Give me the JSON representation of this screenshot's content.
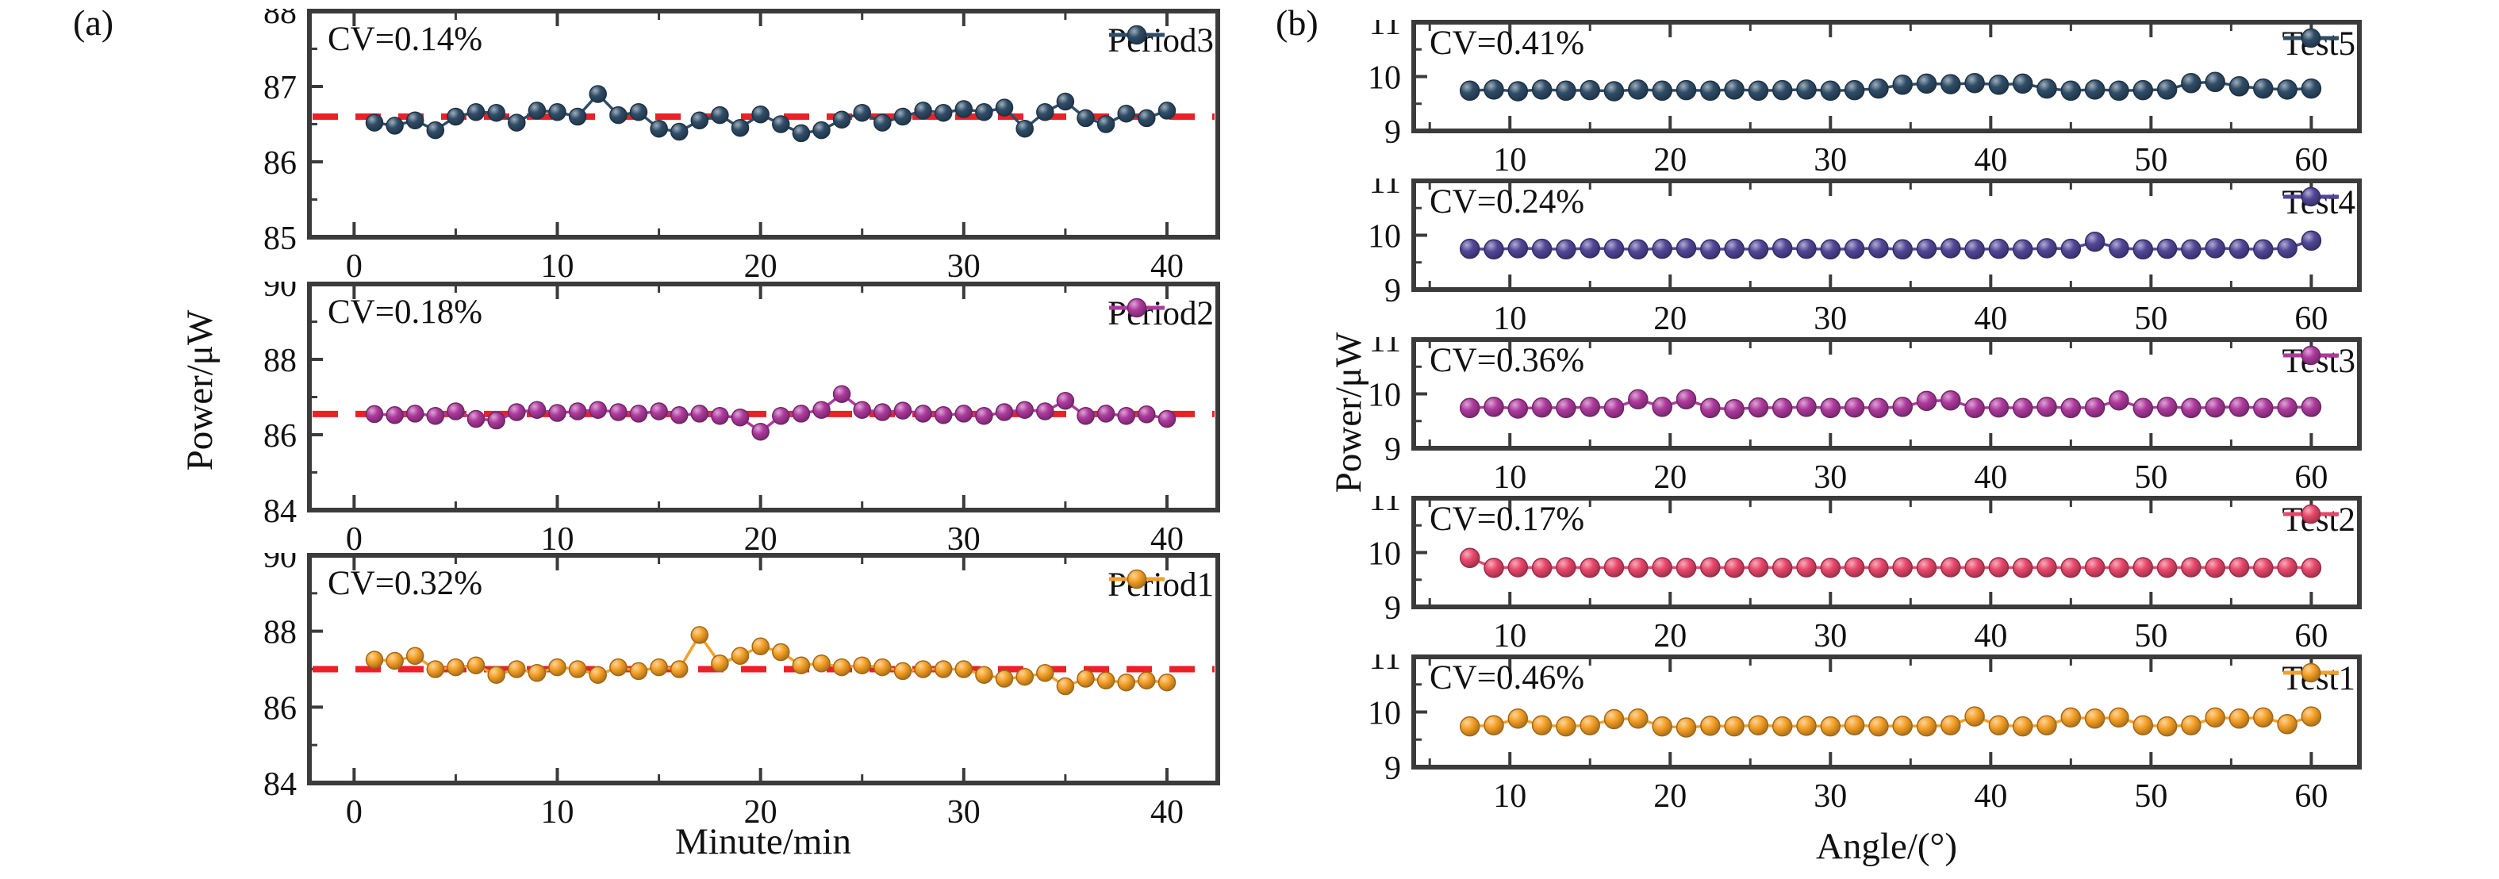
{
  "panels": {
    "a": {
      "tag": "(a)",
      "ylabel": "Power/μW",
      "xlabel": "Minute/min"
    },
    "b": {
      "tag": "(b)",
      "ylabel": "Power/μW",
      "xlabel": "Angle/(°)"
    }
  },
  "colors": {
    "frame": "#3b3b3b",
    "mean_line": "#ec2027",
    "dark_blue": "#2f4d68",
    "indigo": "#514798",
    "magenta": "#ae3a9e",
    "pink": "#e8476b",
    "orange": "#f5a026"
  },
  "chart_data": [
    {
      "type": "line",
      "panel": "a",
      "series_name": "Period3",
      "cv_label": "CV=0.14%",
      "color": "#2f4d68",
      "mean_line": 86.6,
      "xlim": [
        -2.2,
        42.5
      ],
      "ylim": [
        85,
        88
      ],
      "xticks": [
        0,
        10,
        20,
        30,
        40
      ],
      "xticks_minor": [
        5,
        15,
        25,
        35
      ],
      "yticks": [
        85,
        86,
        87,
        88
      ],
      "yticks_minor": [
        85.5,
        86.5,
        87.5
      ],
      "x": [
        1,
        2,
        3,
        4,
        5,
        6,
        7,
        8,
        9,
        10,
        11,
        12,
        13,
        14,
        15,
        16,
        17,
        18,
        19,
        20,
        21,
        22,
        23,
        24,
        25,
        26,
        27,
        28,
        29,
        30,
        31,
        32,
        33,
        34,
        35,
        36,
        37,
        38,
        39,
        40
      ],
      "y": [
        86.52,
        86.48,
        86.55,
        86.42,
        86.6,
        86.66,
        86.65,
        86.52,
        86.68,
        86.66,
        86.6,
        86.9,
        86.62,
        86.66,
        86.44,
        86.4,
        86.55,
        86.62,
        86.45,
        86.63,
        86.5,
        86.38,
        86.42,
        86.56,
        86.65,
        86.52,
        86.6,
        86.68,
        86.65,
        86.7,
        86.66,
        86.72,
        86.44,
        86.66,
        86.8,
        86.58,
        86.5,
        86.64,
        86.58,
        86.68
      ]
    },
    {
      "type": "line",
      "panel": "a",
      "series_name": "Period2",
      "cv_label": "CV=0.18%",
      "color": "#ae3a9e",
      "mean_line": 86.55,
      "xlim": [
        -2.2,
        42.5
      ],
      "ylim": [
        84,
        90
      ],
      "xticks": [
        0,
        10,
        20,
        30,
        40
      ],
      "xticks_minor": [
        5,
        15,
        25,
        35
      ],
      "yticks": [
        84,
        86,
        88,
        90
      ],
      "yticks_minor": [
        85,
        87,
        89
      ],
      "x": [
        1,
        2,
        3,
        4,
        5,
        6,
        7,
        8,
        9,
        10,
        11,
        12,
        13,
        14,
        15,
        16,
        17,
        18,
        19,
        20,
        21,
        22,
        23,
        24,
        25,
        26,
        27,
        28,
        29,
        30,
        31,
        32,
        33,
        34,
        35,
        36,
        37,
        38,
        39,
        40
      ],
      "y": [
        86.55,
        86.52,
        86.56,
        86.5,
        86.62,
        86.42,
        86.38,
        86.6,
        86.66,
        86.58,
        86.62,
        86.66,
        86.6,
        86.56,
        86.62,
        86.52,
        86.56,
        86.5,
        86.46,
        86.08,
        86.5,
        86.56,
        86.66,
        87.08,
        86.66,
        86.6,
        86.64,
        86.56,
        86.52,
        86.56,
        86.5,
        86.6,
        86.66,
        86.62,
        86.9,
        86.5,
        86.56,
        86.5,
        86.54,
        86.42
      ]
    },
    {
      "type": "line",
      "panel": "a",
      "series_name": "Period1",
      "cv_label": "CV=0.32%",
      "color": "#f5a026",
      "mean_line": 87.0,
      "xlim": [
        -2.2,
        42.5
      ],
      "ylim": [
        84,
        90
      ],
      "xticks": [
        0,
        10,
        20,
        30,
        40
      ],
      "xticks_minor": [
        5,
        15,
        25,
        35
      ],
      "yticks": [
        84,
        86,
        88,
        90
      ],
      "yticks_minor": [
        85,
        87,
        89
      ],
      "x": [
        1,
        2,
        3,
        4,
        5,
        6,
        7,
        8,
        9,
        10,
        11,
        12,
        13,
        14,
        15,
        16,
        17,
        18,
        19,
        20,
        21,
        22,
        23,
        24,
        25,
        26,
        27,
        28,
        29,
        30,
        31,
        32,
        33,
        34,
        35,
        36,
        37,
        38,
        39,
        40
      ],
      "y": [
        87.25,
        87.22,
        87.35,
        87.0,
        87.05,
        87.1,
        86.85,
        87.0,
        86.9,
        87.05,
        87.0,
        86.85,
        87.05,
        86.95,
        87.05,
        87.0,
        87.9,
        87.15,
        87.35,
        87.6,
        87.45,
        87.1,
        87.15,
        87.05,
        87.1,
        87.05,
        86.95,
        87.0,
        87.0,
        87.0,
        86.85,
        86.75,
        86.8,
        86.9,
        86.55,
        86.75,
        86.7,
        86.65,
        86.7,
        86.65
      ]
    },
    {
      "type": "line",
      "panel": "b",
      "series_name": "Test5",
      "cv_label": "CV=0.41%",
      "color": "#2f4d68",
      "mean_line": null,
      "xlim": [
        4,
        63
      ],
      "ylim": [
        9,
        11
      ],
      "xticks": [
        10,
        20,
        30,
        40,
        50,
        60
      ],
      "xticks_minor": [
        5,
        15,
        25,
        35,
        45,
        55
      ],
      "yticks": [
        9,
        10,
        11
      ],
      "yticks_minor": [
        9.5,
        10.5
      ],
      "x": [
        7.5,
        9,
        10.5,
        12,
        13.5,
        15,
        16.5,
        18,
        19.5,
        21,
        22.5,
        24,
        25.5,
        27,
        28.5,
        30,
        31.5,
        33,
        34.5,
        36,
        37.5,
        39,
        40.5,
        42,
        43.5,
        45,
        46.5,
        48,
        49.5,
        51,
        52.5,
        54,
        55.5,
        57,
        58.5,
        60
      ],
      "y": [
        9.74,
        9.76,
        9.73,
        9.76,
        9.74,
        9.75,
        9.73,
        9.76,
        9.74,
        9.75,
        9.74,
        9.76,
        9.74,
        9.75,
        9.76,
        9.74,
        9.75,
        9.78,
        9.85,
        9.87,
        9.86,
        9.88,
        9.85,
        9.87,
        9.78,
        9.74,
        9.76,
        9.74,
        9.75,
        9.76,
        9.88,
        9.9,
        9.82,
        9.78,
        9.76,
        9.78
      ]
    },
    {
      "type": "line",
      "panel": "b",
      "series_name": "Test4",
      "cv_label": "CV=0.24%",
      "color": "#514798",
      "mean_line": null,
      "xlim": [
        4,
        63
      ],
      "ylim": [
        9,
        11
      ],
      "xticks": [
        10,
        20,
        30,
        40,
        50,
        60
      ],
      "xticks_minor": [
        5,
        15,
        25,
        35,
        45,
        55
      ],
      "yticks": [
        9,
        10,
        11
      ],
      "yticks_minor": [
        9.5,
        10.5
      ],
      "x": [
        7.5,
        9,
        10.5,
        12,
        13.5,
        15,
        16.5,
        18,
        19.5,
        21,
        22.5,
        24,
        25.5,
        27,
        28.5,
        30,
        31.5,
        33,
        34.5,
        36,
        37.5,
        39,
        40.5,
        42,
        43.5,
        45,
        46.5,
        48,
        49.5,
        51,
        52.5,
        54,
        55.5,
        57,
        58.5,
        60
      ],
      "y": [
        9.75,
        9.74,
        9.76,
        9.75,
        9.74,
        9.76,
        9.75,
        9.74,
        9.75,
        9.76,
        9.74,
        9.75,
        9.74,
        9.76,
        9.75,
        9.74,
        9.75,
        9.76,
        9.74,
        9.75,
        9.76,
        9.74,
        9.75,
        9.74,
        9.76,
        9.75,
        9.88,
        9.76,
        9.74,
        9.75,
        9.74,
        9.76,
        9.75,
        9.74,
        9.76,
        9.9
      ]
    },
    {
      "type": "line",
      "panel": "b",
      "series_name": "Test3",
      "cv_label": "CV=0.36%",
      "color": "#ae3a9e",
      "mean_line": null,
      "xlim": [
        4,
        63
      ],
      "ylim": [
        9,
        11
      ],
      "xticks": [
        10,
        20,
        30,
        40,
        50,
        60
      ],
      "xticks_minor": [
        5,
        15,
        25,
        35,
        45,
        55
      ],
      "yticks": [
        9,
        10,
        11
      ],
      "yticks_minor": [
        9.5,
        10.5
      ],
      "x": [
        7.5,
        9,
        10.5,
        12,
        13.5,
        15,
        16.5,
        18,
        19.5,
        21,
        22.5,
        24,
        25.5,
        27,
        28.5,
        30,
        31.5,
        33,
        34.5,
        36,
        37.5,
        39,
        40.5,
        42,
        43.5,
        45,
        46.5,
        48,
        49.5,
        51,
        52.5,
        54,
        55.5,
        57,
        58.5,
        60
      ],
      "y": [
        9.74,
        9.76,
        9.73,
        9.75,
        9.74,
        9.76,
        9.74,
        9.9,
        9.76,
        9.9,
        9.74,
        9.72,
        9.75,
        9.74,
        9.76,
        9.74,
        9.75,
        9.74,
        9.76,
        9.87,
        9.88,
        9.74,
        9.75,
        9.74,
        9.76,
        9.74,
        9.75,
        9.88,
        9.74,
        9.76,
        9.74,
        9.75,
        9.76,
        9.74,
        9.75,
        9.76
      ]
    },
    {
      "type": "line",
      "panel": "b",
      "series_name": "Test2",
      "cv_label": "CV=0.17%",
      "color": "#e8476b",
      "mean_line": null,
      "xlim": [
        4,
        63
      ],
      "ylim": [
        9,
        11
      ],
      "xticks": [
        10,
        20,
        30,
        40,
        50,
        60
      ],
      "xticks_minor": [
        5,
        15,
        25,
        35,
        45,
        55
      ],
      "yticks": [
        9,
        10,
        11
      ],
      "yticks_minor": [
        9.5,
        10.5
      ],
      "x": [
        7.5,
        9,
        10.5,
        12,
        13.5,
        15,
        16.5,
        18,
        19.5,
        21,
        22.5,
        24,
        25.5,
        27,
        28.5,
        30,
        31.5,
        33,
        34.5,
        36,
        37.5,
        39,
        40.5,
        42,
        43.5,
        45,
        46.5,
        48,
        49.5,
        51,
        52.5,
        54,
        55.5,
        57,
        58.5,
        60
      ],
      "y": [
        9.9,
        9.72,
        9.73,
        9.72,
        9.73,
        9.72,
        9.73,
        9.72,
        9.73,
        9.72,
        9.73,
        9.72,
        9.73,
        9.72,
        9.73,
        9.72,
        9.73,
        9.72,
        9.73,
        9.72,
        9.73,
        9.72,
        9.73,
        9.72,
        9.73,
        9.72,
        9.73,
        9.72,
        9.73,
        9.72,
        9.73,
        9.72,
        9.73,
        9.72,
        9.73,
        9.72
      ]
    },
    {
      "type": "line",
      "panel": "b",
      "series_name": "Test1",
      "cv_label": "CV=0.46%",
      "color": "#f5a026",
      "mean_line": null,
      "xlim": [
        4,
        63
      ],
      "ylim": [
        9,
        11
      ],
      "xticks": [
        10,
        20,
        30,
        40,
        50,
        60
      ],
      "xticks_minor": [
        5,
        15,
        25,
        35,
        45,
        55
      ],
      "yticks": [
        9,
        10,
        11
      ],
      "yticks_minor": [
        9.5,
        10.5
      ],
      "x": [
        7.5,
        9,
        10.5,
        12,
        13.5,
        15,
        16.5,
        18,
        19.5,
        21,
        22.5,
        24,
        25.5,
        27,
        28.5,
        30,
        31.5,
        33,
        34.5,
        36,
        37.5,
        39,
        40.5,
        42,
        43.5,
        45,
        46.5,
        48,
        49.5,
        51,
        52.5,
        54,
        55.5,
        57,
        58.5,
        60
      ],
      "y": [
        9.74,
        9.76,
        9.88,
        9.76,
        9.74,
        9.76,
        9.87,
        9.88,
        9.74,
        9.72,
        9.75,
        9.74,
        9.76,
        9.74,
        9.75,
        9.74,
        9.76,
        9.74,
        9.75,
        9.74,
        9.76,
        9.92,
        9.76,
        9.74,
        9.76,
        9.9,
        9.88,
        9.9,
        9.76,
        9.74,
        9.76,
        9.9,
        9.88,
        9.9,
        9.78,
        9.92
      ]
    }
  ]
}
